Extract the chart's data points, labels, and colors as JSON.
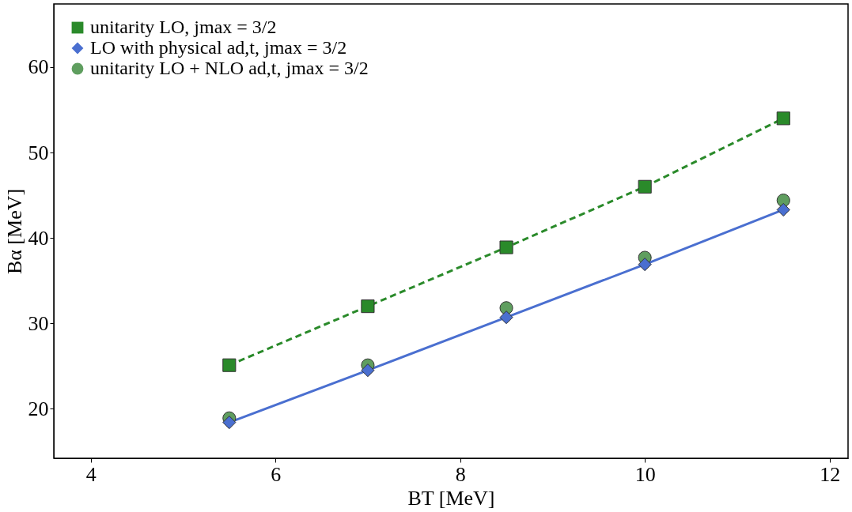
{
  "chart_data": {
    "type": "line",
    "xlabel": "BT [MeV]",
    "ylabel": "Bα [MeV]",
    "x": [
      5.5,
      7,
      8.5,
      10,
      11.5
    ],
    "series": [
      {
        "name": "unitarity LO, jmax = 3/2",
        "color": "#2a8a2a",
        "marker": "square",
        "line_style": "dashed",
        "values": [
          25.1,
          32.0,
          38.9,
          46.0,
          54.0
        ]
      },
      {
        "name": "LO with physical ad,t, jmax = 3/2",
        "color": "#4a6fd0",
        "marker": "diamond",
        "line_style": "solid",
        "values": [
          18.4,
          24.5,
          30.7,
          36.9,
          43.3
        ]
      },
      {
        "name": "unitarity LO + NLO ad,t, jmax = 3/2",
        "type": "scatter",
        "color": "#5f9e5f",
        "marker": "circle",
        "values": [
          18.9,
          25.1,
          31.8,
          37.7,
          44.4
        ]
      }
    ],
    "xlim": [
      3.6,
      12.2
    ],
    "ylim": [
      14.2,
      67.4
    ],
    "xticks": [
      4,
      6,
      8,
      10,
      12
    ],
    "yticks": [
      20,
      30,
      40,
      50,
      60
    ],
    "grid": false,
    "legend": "top left"
  }
}
